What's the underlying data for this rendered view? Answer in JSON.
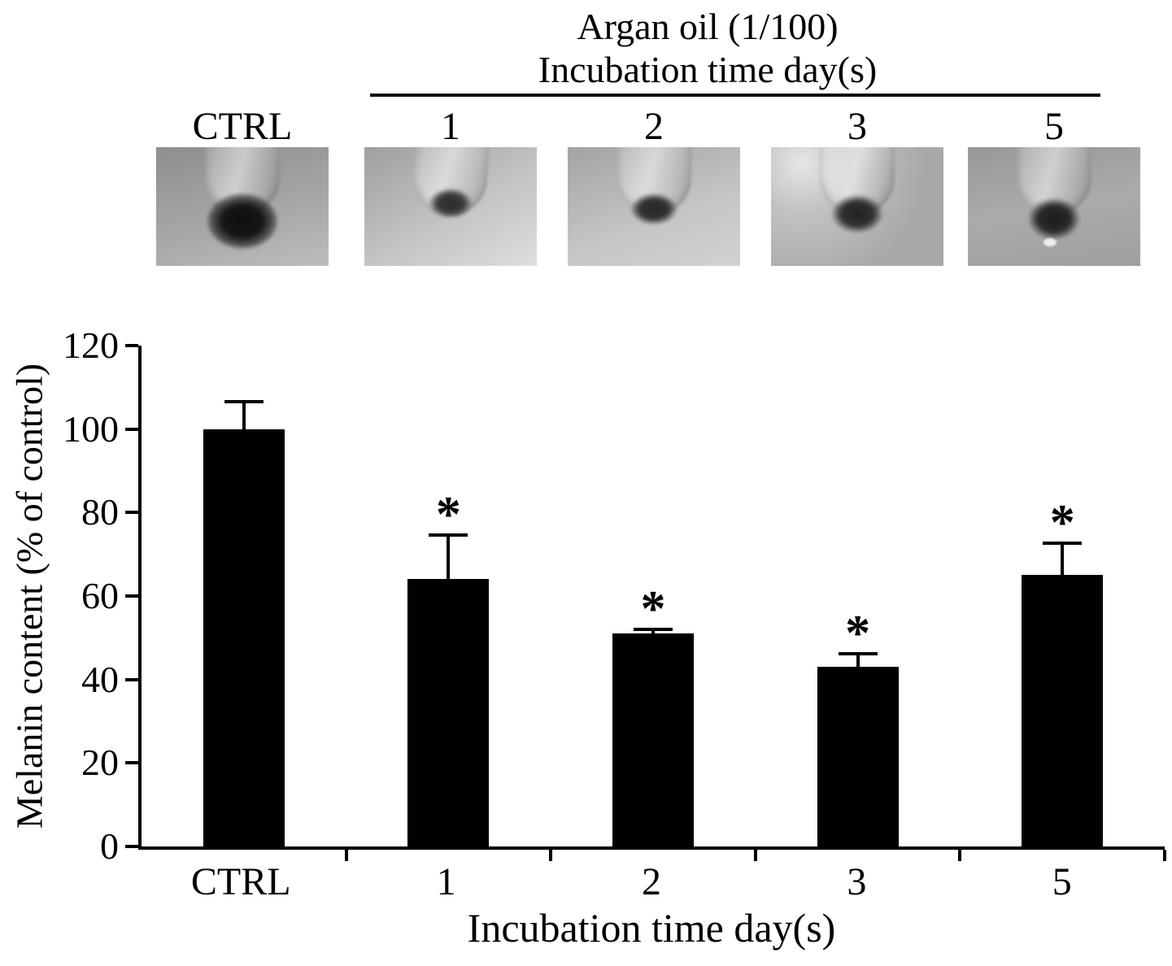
{
  "figure": {
    "treatment_header_line1": "Argan oil (1/100)",
    "treatment_header_line2": "Incubation time day(s)",
    "photo_labels": [
      "CTRL",
      "1",
      "2",
      "3",
      "5"
    ]
  },
  "chart_data": {
    "type": "bar",
    "title": "",
    "categories": [
      "CTRL",
      "1",
      "2",
      "3",
      "5"
    ],
    "values": [
      100,
      64,
      51,
      43,
      65
    ],
    "errors": [
      7,
      11,
      1.5,
      3.5,
      8
    ],
    "significance": [
      "",
      "*",
      "*",
      "*",
      "*"
    ],
    "xlabel": "Incubation time day(s)",
    "ylabel": "Melanin content (% of control)",
    "ylim": [
      0,
      120
    ],
    "ytick_step": 20,
    "grid": false,
    "legend": false,
    "bar_color": "#000000"
  }
}
